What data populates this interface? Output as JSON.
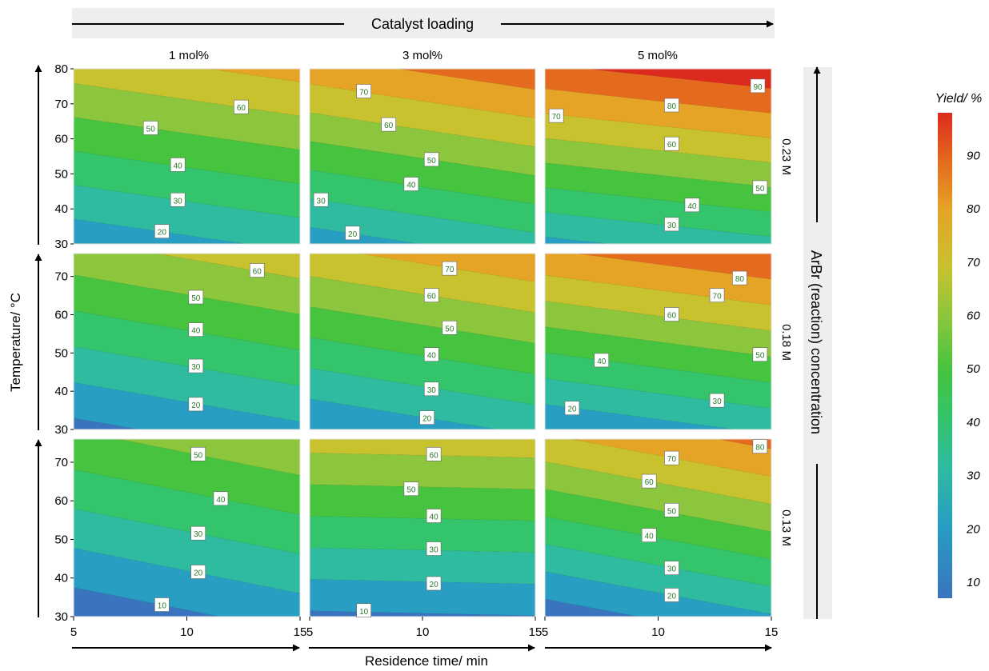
{
  "figure": {
    "top_header": "Catalyst loading",
    "right_header": "ArBr (reaction) concentration",
    "x_axis_label": "Residence time/ min",
    "y_axis_label": "Temperature/ °C",
    "colorbar_title": "Yield/ %"
  },
  "chart_data": {
    "type": "contour",
    "columns": [
      "1 mol%",
      "3 mol%",
      "5 mol%"
    ],
    "rows": [
      "0.23 M",
      "0.18 M",
      "0.13 M"
    ],
    "x": {
      "label": "Residence time/ min",
      "range": [
        5,
        15
      ],
      "ticks": [
        5,
        10,
        15
      ]
    },
    "y_top_row": {
      "range": [
        30,
        80
      ],
      "ticks": [
        30,
        40,
        50,
        60,
        70,
        80
      ]
    },
    "y_other_rows": {
      "range": [
        30,
        76
      ],
      "ticks": [
        30,
        40,
        50,
        60,
        70
      ]
    },
    "y_label": "Temperature/ °C",
    "colorbar": {
      "title": "Yield/ %",
      "range": [
        7,
        98
      ],
      "ticks": [
        10,
        20,
        30,
        40,
        50,
        60,
        70,
        80,
        90
      ],
      "colors": [
        "#3a74be",
        "#279ec2",
        "#2fbba0",
        "#33c46c",
        "#46c33f",
        "#8cc63c",
        "#c7c22e",
        "#e5a425",
        "#e46a1d",
        "#dc2a1e"
      ]
    },
    "panels": [
      {
        "row": "0.23 M",
        "col": "1 mol%",
        "contour_labels": [
          {
            "value": "60",
            "x": 12.4,
            "y": 69
          },
          {
            "value": "50",
            "x": 8.4,
            "y": 63
          },
          {
            "value": "40",
            "x": 9.6,
            "y": 52.5
          },
          {
            "value": "30",
            "x": 9.6,
            "y": 42.5
          },
          {
            "value": "20",
            "x": 8.9,
            "y": 33.5
          }
        ]
      },
      {
        "row": "0.23 M",
        "col": "3 mol%",
        "contour_labels": [
          {
            "value": "70",
            "x": 7.4,
            "y": 73.5
          },
          {
            "value": "60",
            "x": 8.5,
            "y": 64
          },
          {
            "value": "50",
            "x": 10.4,
            "y": 54
          },
          {
            "value": "40",
            "x": 9.5,
            "y": 47
          },
          {
            "value": "30",
            "x": 5.5,
            "y": 42.5
          },
          {
            "value": "20",
            "x": 6.9,
            "y": 33
          }
        ]
      },
      {
        "row": "0.23 M",
        "col": "5 mol%",
        "contour_labels": [
          {
            "value": "90",
            "x": 14.4,
            "y": 75
          },
          {
            "value": "80",
            "x": 10.6,
            "y": 69.5
          },
          {
            "value": "70",
            "x": 5.5,
            "y": 66.5
          },
          {
            "value": "60",
            "x": 10.6,
            "y": 58.5
          },
          {
            "value": "50",
            "x": 14.5,
            "y": 46
          },
          {
            "value": "40",
            "x": 11.5,
            "y": 41
          },
          {
            "value": "30",
            "x": 10.6,
            "y": 35.5
          }
        ]
      },
      {
        "row": "0.18 M",
        "col": "1 mol%",
        "contour_labels": [
          {
            "value": "60",
            "x": 13.1,
            "y": 71.5
          },
          {
            "value": "50",
            "x": 10.4,
            "y": 64.5
          },
          {
            "value": "40",
            "x": 10.4,
            "y": 56
          },
          {
            "value": "30",
            "x": 10.4,
            "y": 46.5
          },
          {
            "value": "20",
            "x": 10.4,
            "y": 36.5
          }
        ]
      },
      {
        "row": "0.18 M",
        "col": "3 mol%",
        "contour_labels": [
          {
            "value": "70",
            "x": 11.2,
            "y": 72
          },
          {
            "value": "60",
            "x": 10.4,
            "y": 65
          },
          {
            "value": "50",
            "x": 11.2,
            "y": 56.5
          },
          {
            "value": "40",
            "x": 10.4,
            "y": 49.5
          },
          {
            "value": "30",
            "x": 10.4,
            "y": 40.5
          },
          {
            "value": "20",
            "x": 10.2,
            "y": 33
          }
        ]
      },
      {
        "row": "0.18 M",
        "col": "5 mol%",
        "contour_labels": [
          {
            "value": "80",
            "x": 13.6,
            "y": 69.5
          },
          {
            "value": "70",
            "x": 12.6,
            "y": 65
          },
          {
            "value": "60",
            "x": 10.6,
            "y": 60
          },
          {
            "value": "50",
            "x": 14.5,
            "y": 49.5
          },
          {
            "value": "40",
            "x": 7.5,
            "y": 48
          },
          {
            "value": "30",
            "x": 12.6,
            "y": 37.5
          },
          {
            "value": "20",
            "x": 6.2,
            "y": 35.5
          }
        ]
      },
      {
        "row": "0.13 M",
        "col": "1 mol%",
        "contour_labels": [
          {
            "value": "50",
            "x": 10.5,
            "y": 72
          },
          {
            "value": "40",
            "x": 11.5,
            "y": 60.5
          },
          {
            "value": "30",
            "x": 10.5,
            "y": 51.5
          },
          {
            "value": "20",
            "x": 10.5,
            "y": 41.5
          },
          {
            "value": "10",
            "x": 8.9,
            "y": 33
          }
        ]
      },
      {
        "row": "0.13 M",
        "col": "3 mol%",
        "contour_labels": [
          {
            "value": "60",
            "x": 10.5,
            "y": 72
          },
          {
            "value": "50",
            "x": 9.5,
            "y": 63
          },
          {
            "value": "40",
            "x": 10.5,
            "y": 56
          },
          {
            "value": "30",
            "x": 10.5,
            "y": 47.5
          },
          {
            "value": "20",
            "x": 10.5,
            "y": 38.5
          },
          {
            "value": "10",
            "x": 7.4,
            "y": 31.5
          }
        ]
      },
      {
        "row": "0.13 M",
        "col": "5 mol%",
        "contour_labels": [
          {
            "value": "80",
            "x": 14.5,
            "y": 74
          },
          {
            "value": "70",
            "x": 10.6,
            "y": 71
          },
          {
            "value": "60",
            "x": 9.6,
            "y": 65
          },
          {
            "value": "50",
            "x": 10.6,
            "y": 57.5
          },
          {
            "value": "40",
            "x": 9.6,
            "y": 51
          },
          {
            "value": "30",
            "x": 10.6,
            "y": 42.5
          },
          {
            "value": "20",
            "x": 10.6,
            "y": 35.5
          }
        ]
      }
    ]
  }
}
